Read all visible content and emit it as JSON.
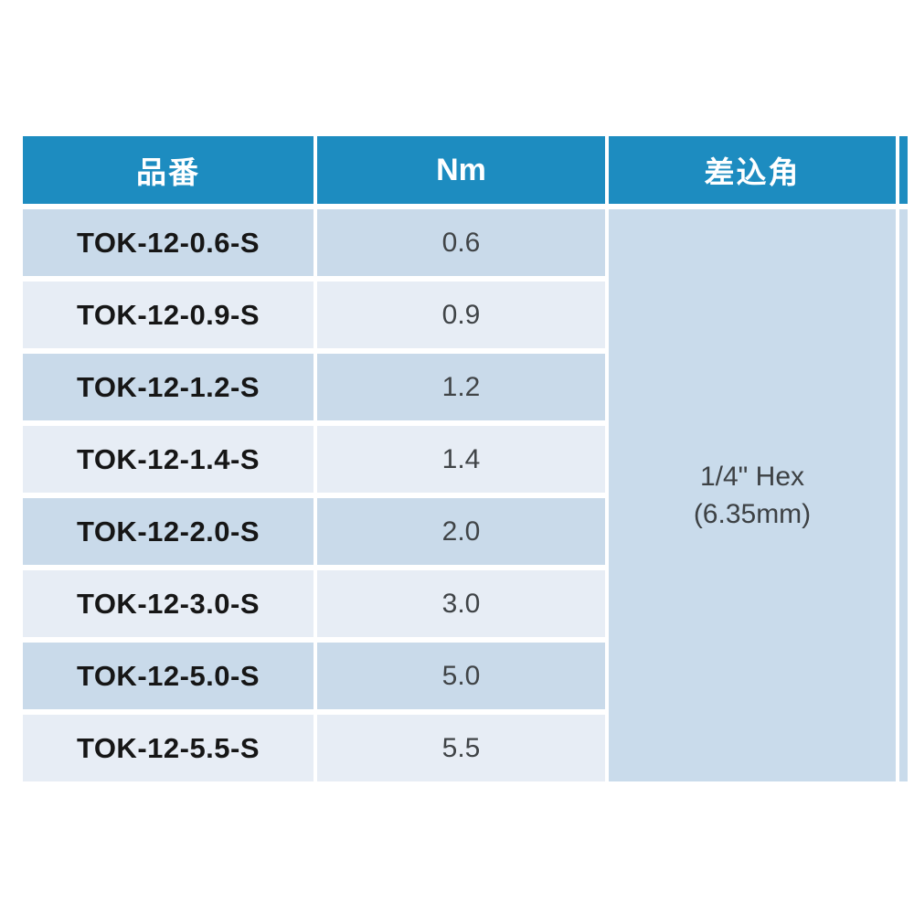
{
  "table": {
    "headers": {
      "part": "品番",
      "torque": "Nm",
      "drive": "差込角"
    },
    "rows": [
      {
        "part": "TOK-12-0.6-S",
        "nm": "0.6"
      },
      {
        "part": "TOK-12-0.9-S",
        "nm": "0.9"
      },
      {
        "part": "TOK-12-1.2-S",
        "nm": "1.2"
      },
      {
        "part": "TOK-12-1.4-S",
        "nm": "1.4"
      },
      {
        "part": "TOK-12-2.0-S",
        "nm": "2.0"
      },
      {
        "part": "TOK-12-3.0-S",
        "nm": "3.0"
      },
      {
        "part": "TOK-12-5.0-S",
        "nm": "5.0"
      },
      {
        "part": "TOK-12-5.5-S",
        "nm": "5.5"
      }
    ],
    "drive_size": {
      "line1": "1/4\" Hex",
      "line2": "(6.35mm)"
    }
  },
  "colors": {
    "header_bg": "#1d8cc0",
    "header_text": "#ffffff",
    "row_dark": "#c9daea",
    "row_light": "#e7edf5",
    "merged_bg": "#c9dbeb",
    "part_text": "#161616",
    "value_text": "#404447",
    "gap": "#ffffff"
  },
  "chart_data": {
    "type": "table",
    "title": "",
    "columns": [
      "品番",
      "Nm",
      "差込角"
    ],
    "rows": [
      [
        "TOK-12-0.6-S",
        0.6,
        "1/4\" Hex (6.35mm)"
      ],
      [
        "TOK-12-0.9-S",
        0.9,
        "1/4\" Hex (6.35mm)"
      ],
      [
        "TOK-12-1.2-S",
        1.2,
        "1/4\" Hex (6.35mm)"
      ],
      [
        "TOK-12-1.4-S",
        1.4,
        "1/4\" Hex (6.35mm)"
      ],
      [
        "TOK-12-2.0-S",
        2.0,
        "1/4\" Hex (6.35mm)"
      ],
      [
        "TOK-12-3.0-S",
        3.0,
        "1/4\" Hex (6.35mm)"
      ],
      [
        "TOK-12-5.0-S",
        5.0,
        "1/4\" Hex (6.35mm)"
      ],
      [
        "TOK-12-5.5-S",
        5.5,
        "1/4\" Hex (6.35mm)"
      ]
    ],
    "layout_hints": {
      "drive_size_column_merged": true,
      "zebra_striping": true,
      "right_edge_cropped_sliver": true
    }
  }
}
